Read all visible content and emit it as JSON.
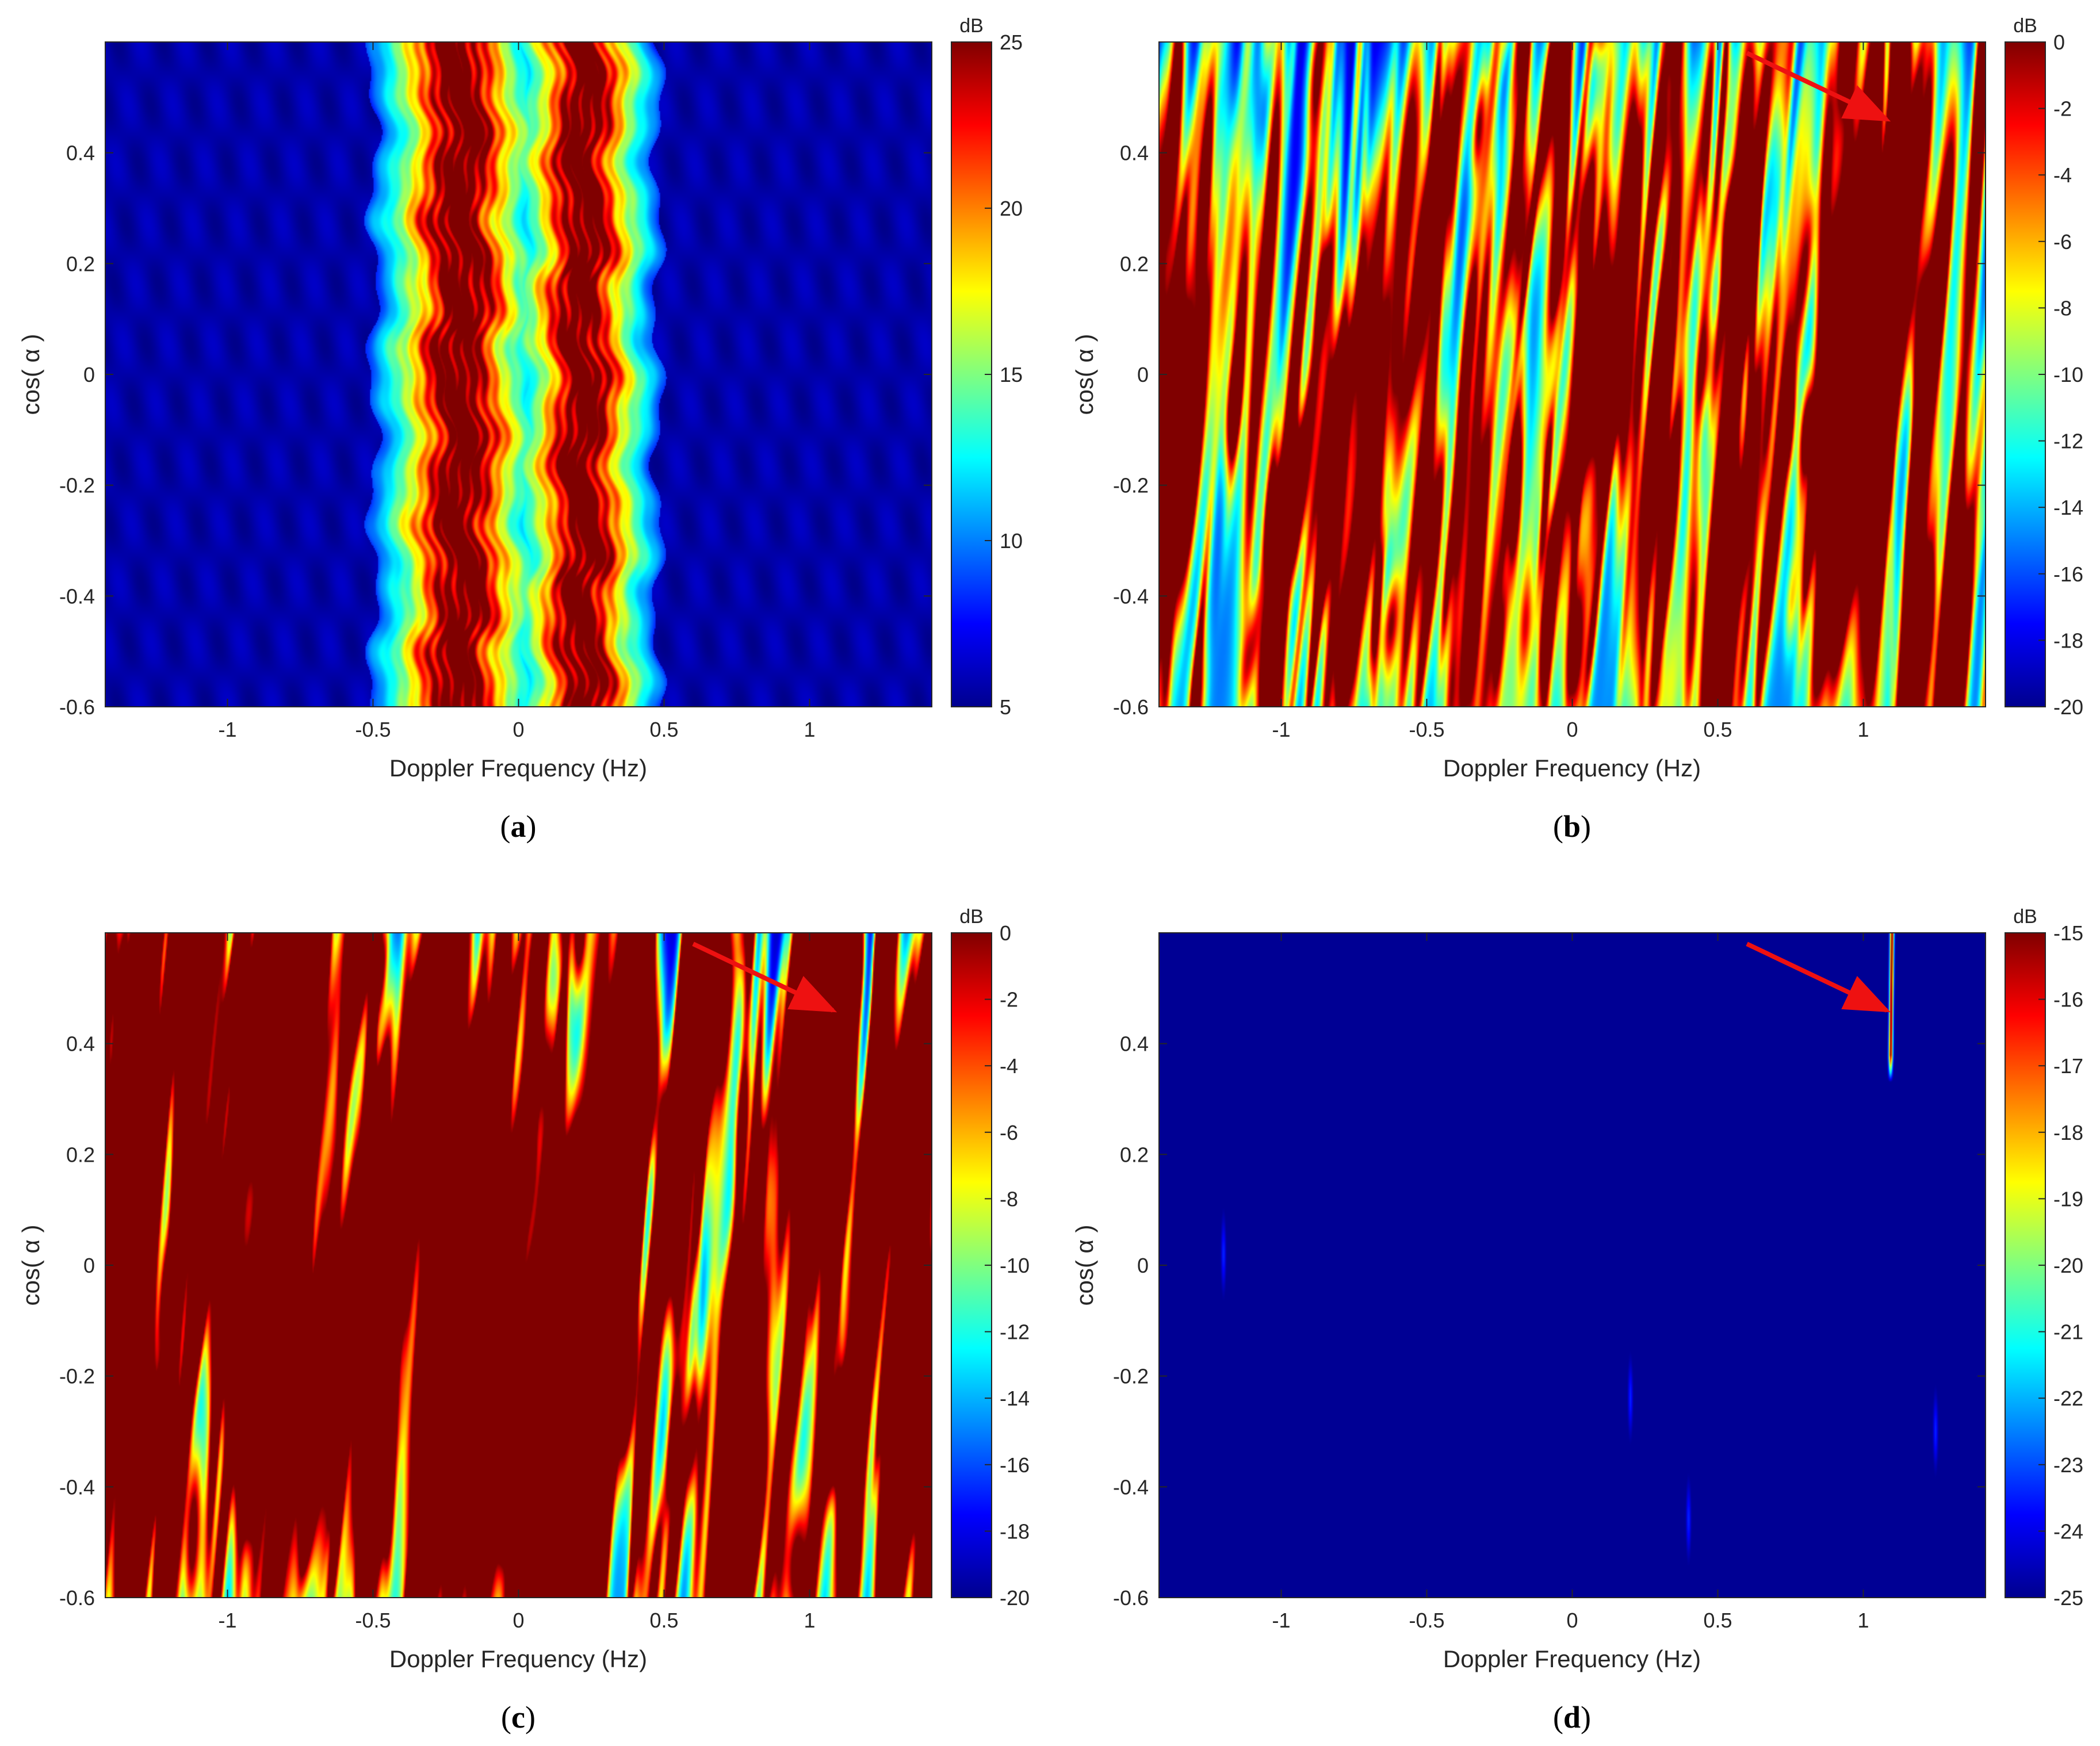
{
  "chart_data": [
    {
      "type": "heatmap",
      "panel_label": "a",
      "xlabel": "Doppler Frequency (Hz)",
      "ylabel": "cos( α )",
      "xlim": [
        -1.42,
        1.42
      ],
      "ylim": [
        -0.6,
        0.6
      ],
      "xticks": [
        -1,
        -0.5,
        0,
        0.5,
        1
      ],
      "xtick_labels": [
        "-1",
        "-0.5",
        "0",
        "0.5",
        "1"
      ],
      "yticks": [
        -0.6,
        -0.4,
        -0.2,
        0,
        0.2,
        0.4
      ],
      "ytick_labels": [
        "-0.6",
        "-0.4",
        "-0.2",
        "0",
        "0.2",
        "0.4"
      ],
      "colorbar": {
        "unit": "dB",
        "range": [
          5,
          25
        ],
        "ticks": [
          5,
          10,
          15,
          20,
          25
        ],
        "tick_labels": [
          "5",
          "10",
          "15",
          "20",
          "25"
        ]
      },
      "features": [
        {
          "kind": "band",
          "center_hz": -0.2,
          "half_width_hz": 0.3,
          "peak_db": 25
        },
        {
          "kind": "band",
          "center_hz": 0.22,
          "half_width_hz": 0.26,
          "peak_db": 25
        }
      ],
      "arrow": null
    },
    {
      "type": "heatmap",
      "panel_label": "b",
      "xlabel": "Doppler Frequency (Hz)",
      "ylabel": "cos( α )",
      "xlim": [
        -1.42,
        1.42
      ],
      "ylim": [
        -0.6,
        0.6
      ],
      "xticks": [
        -1,
        -0.5,
        0,
        0.5,
        1
      ],
      "xtick_labels": [
        "-1",
        "-0.5",
        "0",
        "0.5",
        "1"
      ],
      "yticks": [
        -0.6,
        -0.4,
        -0.2,
        0,
        0.2,
        0.4
      ],
      "ytick_labels": [
        "-0.6",
        "-0.4",
        "-0.2",
        "0",
        "0.2",
        "0.4"
      ],
      "colorbar": {
        "unit": "dB",
        "range": [
          -20,
          0
        ],
        "ticks": [
          -20,
          -18,
          -16,
          -14,
          -12,
          -10,
          -8,
          -6,
          -4,
          -2,
          0
        ],
        "tick_labels": [
          "-20",
          "-18",
          "-16",
          "-14",
          "-12",
          "-10",
          "-8",
          "-6",
          "-4",
          "-2",
          "0"
        ]
      },
      "features": [
        {
          "kind": "streaks",
          "intensity": "medium",
          "concentration_hz": -0.25
        },
        {
          "kind": "target",
          "x_hz": 1.1,
          "y": 0.6
        }
      ],
      "arrow": {
        "from": [
          0.6,
          0.58
        ],
        "to": [
          1.08,
          0.46
        ]
      }
    },
    {
      "type": "heatmap",
      "panel_label": "c",
      "xlabel": "Doppler Frequency (Hz)",
      "ylabel": "cos( α )",
      "xlim": [
        -1.42,
        1.42
      ],
      "ylim": [
        -0.6,
        0.6
      ],
      "xticks": [
        -1,
        -0.5,
        0,
        0.5,
        1
      ],
      "xtick_labels": [
        "-1",
        "-0.5",
        "0",
        "0.5",
        "1"
      ],
      "yticks": [
        -0.6,
        -0.4,
        -0.2,
        0,
        0.2,
        0.4
      ],
      "ytick_labels": [
        "-0.6",
        "-0.4",
        "-0.2",
        "0",
        "0.2",
        "0.4"
      ],
      "colorbar": {
        "unit": "dB",
        "range": [
          -20,
          0
        ],
        "ticks": [
          -20,
          -18,
          -16,
          -14,
          -12,
          -10,
          -8,
          -6,
          -4,
          -2,
          0
        ],
        "tick_labels": [
          "-20",
          "-18",
          "-16",
          "-14",
          "-12",
          "-10",
          "-8",
          "-6",
          "-4",
          "-2",
          "0"
        ]
      },
      "features": [
        {
          "kind": "streaks",
          "intensity": "high",
          "concentration_hz": -0.22
        },
        {
          "kind": "band",
          "center_hz": -0.22,
          "half_width_hz": 0.1,
          "peak_db": 0
        },
        {
          "kind": "band",
          "center_hz": 0.2,
          "half_width_hz": 0.07,
          "peak_db": -2
        },
        {
          "kind": "target",
          "x_hz": 1.1,
          "y": 0.6
        }
      ],
      "arrow": {
        "from": [
          0.6,
          0.58
        ],
        "to": [
          1.08,
          0.46
        ]
      }
    },
    {
      "type": "heatmap",
      "panel_label": "d",
      "xlabel": "Doppler Frequency (Hz)",
      "ylabel": "cos( α )",
      "xlim": [
        -1.42,
        1.42
      ],
      "ylim": [
        -0.6,
        0.6
      ],
      "xticks": [
        -1,
        -0.5,
        0,
        0.5,
        1
      ],
      "xtick_labels": [
        "-1",
        "-0.5",
        "0",
        "0.5",
        "1"
      ],
      "yticks": [
        -0.6,
        -0.4,
        -0.2,
        0,
        0.2,
        0.4
      ],
      "ytick_labels": [
        "-0.6",
        "-0.4",
        "-0.2",
        "0",
        "0.2",
        "0.4"
      ],
      "colorbar": {
        "unit": "dB",
        "range": [
          -25,
          -15
        ],
        "ticks": [
          -25,
          -24,
          -23,
          -22,
          -21,
          -20,
          -19,
          -18,
          -17,
          -16,
          -15
        ],
        "tick_labels": [
          "-25",
          "-24",
          "-23",
          "-22",
          "-21",
          "-20",
          "-19",
          "-18",
          "-17",
          "-16",
          "-15"
        ]
      },
      "features": [
        {
          "kind": "target",
          "x_hz": 1.1,
          "y_top": 0.6,
          "y_bottom": 0.33,
          "peak_db": -15
        },
        {
          "kind": "faint_spot",
          "x_hz": -1.2,
          "y": 0.02
        },
        {
          "kind": "faint_spot",
          "x_hz": 0.2,
          "y": -0.24
        },
        {
          "kind": "faint_spot",
          "x_hz": 0.4,
          "y": -0.46
        },
        {
          "kind": "faint_spot",
          "x_hz": 1.25,
          "y": -0.3
        }
      ],
      "arrow": {
        "from": [
          0.6,
          0.58
        ],
        "to": [
          1.08,
          0.46
        ]
      }
    }
  ]
}
